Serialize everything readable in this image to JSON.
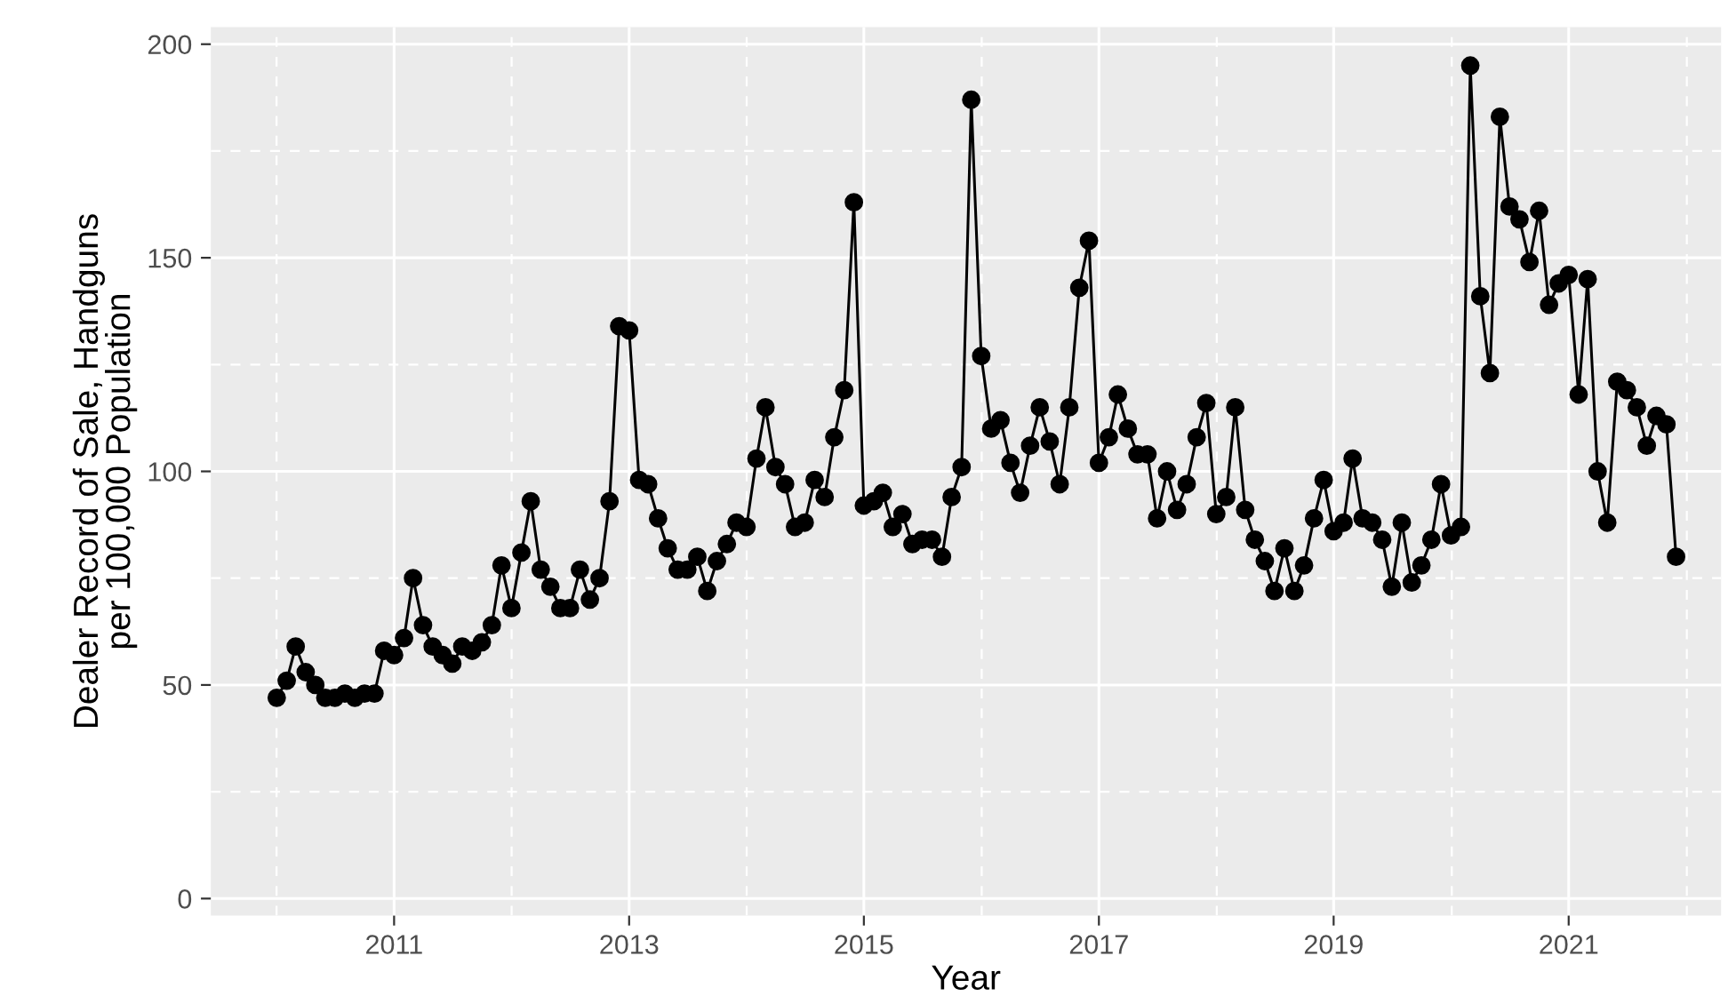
{
  "chart_data": {
    "type": "line",
    "xlabel": "Year",
    "ylabel": "Dealer Record of Sale, Handguns\nper 100,000 Population",
    "x": [
      "2010-01",
      "2010-02",
      "2010-03",
      "2010-04",
      "2010-05",
      "2010-06",
      "2010-07",
      "2010-08",
      "2010-09",
      "2010-10",
      "2010-11",
      "2010-12",
      "2011-01",
      "2011-02",
      "2011-03",
      "2011-04",
      "2011-05",
      "2011-06",
      "2011-07",
      "2011-08",
      "2011-09",
      "2011-10",
      "2011-11",
      "2011-12",
      "2012-01",
      "2012-02",
      "2012-03",
      "2012-04",
      "2012-05",
      "2012-06",
      "2012-07",
      "2012-08",
      "2012-09",
      "2012-10",
      "2012-11",
      "2012-12",
      "2013-01",
      "2013-02",
      "2013-03",
      "2013-04",
      "2013-05",
      "2013-06",
      "2013-07",
      "2013-08",
      "2013-09",
      "2013-10",
      "2013-11",
      "2013-12",
      "2014-01",
      "2014-02",
      "2014-03",
      "2014-04",
      "2014-05",
      "2014-06",
      "2014-07",
      "2014-08",
      "2014-09",
      "2014-10",
      "2014-11",
      "2014-12",
      "2015-01",
      "2015-02",
      "2015-03",
      "2015-04",
      "2015-05",
      "2015-06",
      "2015-07",
      "2015-08",
      "2015-09",
      "2015-10",
      "2015-11",
      "2015-12",
      "2016-01",
      "2016-02",
      "2016-03",
      "2016-04",
      "2016-05",
      "2016-06",
      "2016-07",
      "2016-08",
      "2016-09",
      "2016-10",
      "2016-11",
      "2016-12",
      "2017-01",
      "2017-02",
      "2017-03",
      "2017-04",
      "2017-05",
      "2017-06",
      "2017-07",
      "2017-08",
      "2017-09",
      "2017-10",
      "2017-11",
      "2017-12",
      "2018-01",
      "2018-02",
      "2018-03",
      "2018-04",
      "2018-05",
      "2018-06",
      "2018-07",
      "2018-08",
      "2018-09",
      "2018-10",
      "2018-11",
      "2018-12",
      "2019-01",
      "2019-02",
      "2019-03",
      "2019-04",
      "2019-05",
      "2019-06",
      "2019-07",
      "2019-08",
      "2019-09",
      "2019-10",
      "2019-11",
      "2019-12",
      "2020-01",
      "2020-02",
      "2020-03",
      "2020-04",
      "2020-05",
      "2020-06",
      "2020-07",
      "2020-08",
      "2020-09",
      "2020-10",
      "2020-11",
      "2020-12",
      "2021-01",
      "2021-02",
      "2021-03",
      "2021-04",
      "2021-05",
      "2021-06",
      "2021-07",
      "2021-08",
      "2021-09",
      "2021-10",
      "2021-11",
      "2021-12"
    ],
    "series": [
      {
        "color": "#000000",
        "values": [
          47,
          51,
          59,
          53,
          50,
          47,
          47,
          48,
          47,
          48,
          48,
          58,
          57,
          61,
          75,
          64,
          59,
          57,
          55,
          59,
          58,
          60,
          64,
          78,
          68,
          81,
          93,
          77,
          73,
          68,
          68,
          77,
          70,
          75,
          93,
          134,
          133,
          98,
          97,
          89,
          82,
          77,
          77,
          80,
          72,
          79,
          83,
          88,
          87,
          103,
          115,
          101,
          97,
          87,
          88,
          98,
          94,
          108,
          119,
          163,
          92,
          93,
          95,
          87,
          90,
          83,
          84,
          84,
          80,
          94,
          101,
          187,
          127,
          110,
          112,
          102,
          95,
          106,
          115,
          107,
          97,
          115,
          143,
          154,
          102,
          108,
          118,
          110,
          104,
          104,
          89,
          100,
          91,
          97,
          108,
          116,
          90,
          94,
          115,
          91,
          84,
          79,
          72,
          82,
          72,
          78,
          89,
          98,
          86,
          88,
          103,
          89,
          88,
          84,
          73,
          88,
          74,
          78,
          84,
          97,
          85,
          87,
          195,
          141,
          123,
          183,
          162,
          159,
          149,
          161,
          139,
          144,
          146,
          118,
          145,
          100,
          88,
          121,
          119,
          115,
          106,
          113,
          111,
          80
        ]
      }
    ],
    "xlim": [
      "2009-06-10",
      "2022-04-20"
    ],
    "xticks": [
      {
        "value": "2011-01-01",
        "label": "2011"
      },
      {
        "value": "2013-01-01",
        "label": "2013"
      },
      {
        "value": "2015-01-01",
        "label": "2015"
      },
      {
        "value": "2017-01-01",
        "label": "2017"
      },
      {
        "value": "2019-01-01",
        "label": "2019"
      },
      {
        "value": "2021-01-01",
        "label": "2021"
      }
    ],
    "ylim": [
      -4,
      204
    ],
    "yticks": [
      0,
      50,
      100,
      150,
      200
    ],
    "grid": true,
    "marker": "circle",
    "line_style": "solid"
  }
}
